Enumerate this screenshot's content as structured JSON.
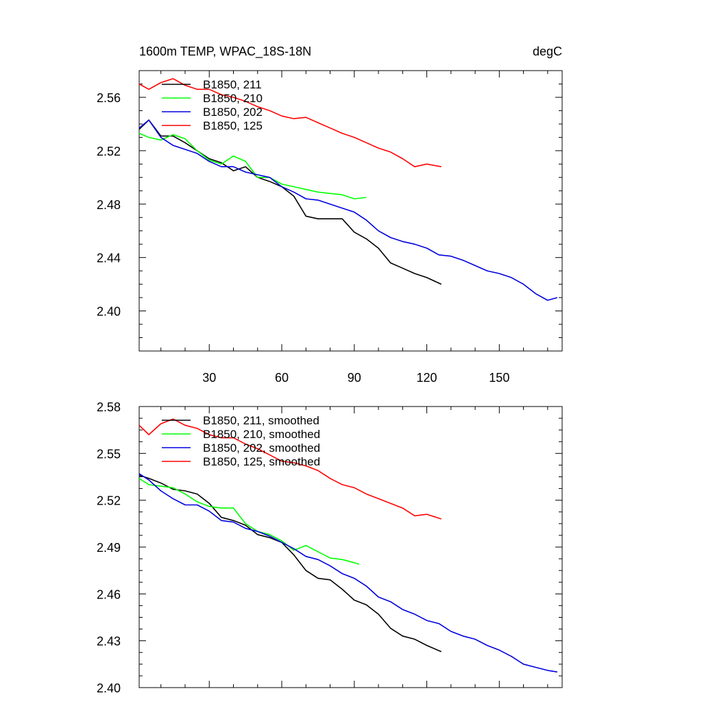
{
  "header": {
    "title": "1600m TEMP, WPAC_18S-18N",
    "units": "degC"
  },
  "colors": {
    "B1850_211": "#000000",
    "B1850_210": "#00ff00",
    "B1850_202": "#0000dd",
    "B1850_125": "#ff0000"
  },
  "chart_data": [
    {
      "type": "line",
      "title": "1600m TEMP, WPAC_18S-18N",
      "units": "degC",
      "xlim": [
        1,
        176
      ],
      "ylim": [
        2.37,
        2.58
      ],
      "xticks": [
        30,
        60,
        90,
        120,
        150
      ],
      "xtick_labels": [
        "30",
        "60",
        "90",
        "120",
        "150"
      ],
      "yticks": [
        2.4,
        2.44,
        2.48,
        2.52,
        2.56
      ],
      "ytick_labels": [
        "2.40",
        "2.44",
        "2.48",
        "2.52",
        "2.56"
      ],
      "legend_position": "top-left",
      "series": [
        {
          "name": "B1850, 211",
          "color": "#000000",
          "x": [
            1,
            5,
            10,
            15,
            20,
            25,
            30,
            35,
            40,
            45,
            50,
            55,
            60,
            65,
            70,
            75,
            80,
            85,
            90,
            95,
            100,
            105,
            110,
            115,
            120,
            126
          ],
          "y": [
            2.536,
            2.543,
            2.531,
            2.531,
            2.526,
            2.52,
            2.514,
            2.511,
            2.505,
            2.508,
            2.5,
            2.497,
            2.493,
            2.486,
            2.471,
            2.469,
            2.469,
            2.469,
            2.459,
            2.454,
            2.447,
            2.436,
            2.432,
            2.428,
            2.425,
            2.42
          ]
        },
        {
          "name": "B1850, 210",
          "color": "#00ff00",
          "x": [
            1,
            5,
            10,
            15,
            20,
            25,
            30,
            35,
            40,
            45,
            50,
            55,
            60,
            65,
            70,
            75,
            80,
            85,
            90,
            95
          ],
          "y": [
            2.533,
            2.53,
            2.528,
            2.532,
            2.529,
            2.52,
            2.513,
            2.51,
            2.516,
            2.512,
            2.5,
            2.5,
            2.495,
            2.493,
            2.491,
            2.489,
            2.488,
            2.487,
            2.484,
            2.485
          ]
        },
        {
          "name": "B1850, 202",
          "color": "#0000dd",
          "x": [
            1,
            5,
            10,
            15,
            20,
            25,
            30,
            35,
            40,
            45,
            50,
            55,
            60,
            65,
            70,
            75,
            80,
            85,
            90,
            95,
            100,
            105,
            110,
            115,
            120,
            125,
            130,
            135,
            140,
            145,
            150,
            155,
            160,
            165,
            170,
            174
          ],
          "y": [
            2.537,
            2.543,
            2.53,
            2.524,
            2.521,
            2.518,
            2.512,
            2.508,
            2.508,
            2.504,
            2.502,
            2.5,
            2.493,
            2.489,
            2.484,
            2.483,
            2.48,
            2.477,
            2.474,
            2.468,
            2.46,
            2.455,
            2.452,
            2.45,
            2.447,
            2.442,
            2.441,
            2.438,
            2.434,
            2.43,
            2.428,
            2.425,
            2.42,
            2.413,
            2.408,
            2.41
          ]
        },
        {
          "name": "B1850, 125",
          "color": "#ff0000",
          "x": [
            1,
            5,
            10,
            15,
            20,
            25,
            30,
            35,
            40,
            45,
            50,
            55,
            60,
            65,
            70,
            75,
            80,
            85,
            90,
            95,
            100,
            105,
            110,
            115,
            120,
            126
          ],
          "y": [
            2.57,
            2.566,
            2.571,
            2.574,
            2.569,
            2.566,
            2.566,
            2.562,
            2.56,
            2.557,
            2.553,
            2.55,
            2.546,
            2.544,
            2.545,
            2.541,
            2.537,
            2.533,
            2.53,
            2.526,
            2.522,
            2.519,
            2.514,
            2.508,
            2.51,
            2.508
          ]
        }
      ]
    },
    {
      "type": "line",
      "xlim": [
        1,
        176
      ],
      "ylim": [
        2.4,
        2.58
      ],
      "xticks": [
        30,
        60,
        90,
        120,
        150
      ],
      "yticks": [
        2.4,
        2.43,
        2.46,
        2.49,
        2.52,
        2.55,
        2.58
      ],
      "ytick_labels": [
        "2.40",
        "2.43",
        "2.46",
        "2.49",
        "2.52",
        "2.55",
        "2.58"
      ],
      "legend_position": "top-left",
      "series": [
        {
          "name": "B1850, 211, smoothed",
          "color": "#000000",
          "x": [
            1,
            5,
            10,
            15,
            20,
            25,
            30,
            35,
            40,
            45,
            50,
            55,
            60,
            65,
            70,
            75,
            80,
            85,
            90,
            95,
            100,
            105,
            110,
            115,
            120,
            126
          ],
          "y": [
            2.536,
            2.534,
            2.531,
            2.527,
            2.526,
            2.524,
            2.518,
            2.509,
            2.507,
            2.504,
            2.498,
            2.496,
            2.493,
            2.485,
            2.475,
            2.47,
            2.469,
            2.463,
            2.456,
            2.453,
            2.447,
            2.438,
            2.433,
            2.431,
            2.427,
            2.423
          ]
        },
        {
          "name": "B1850, 210, smoothed",
          "color": "#00ff00",
          "x": [
            1,
            5,
            10,
            15,
            20,
            25,
            30,
            35,
            40,
            45,
            50,
            55,
            60,
            65,
            70,
            75,
            80,
            85,
            90,
            92
          ],
          "y": [
            2.534,
            2.53,
            2.529,
            2.528,
            2.524,
            2.519,
            2.516,
            2.515,
            2.515,
            2.505,
            2.5,
            2.498,
            2.494,
            2.488,
            2.491,
            2.487,
            2.483,
            2.482,
            2.48,
            2.479
          ]
        },
        {
          "name": "B1850, 202, smoothed",
          "color": "#0000dd",
          "x": [
            1,
            5,
            10,
            15,
            20,
            25,
            30,
            35,
            40,
            45,
            50,
            55,
            60,
            65,
            70,
            75,
            80,
            85,
            90,
            95,
            100,
            105,
            110,
            115,
            120,
            125,
            130,
            135,
            140,
            145,
            150,
            155,
            160,
            165,
            170,
            174
          ],
          "y": [
            2.537,
            2.533,
            2.526,
            2.521,
            2.517,
            2.517,
            2.513,
            2.507,
            2.506,
            2.502,
            2.5,
            2.497,
            2.493,
            2.489,
            2.484,
            2.482,
            2.478,
            2.473,
            2.47,
            2.465,
            2.458,
            2.455,
            2.45,
            2.447,
            2.443,
            2.441,
            2.436,
            2.433,
            2.431,
            2.427,
            2.424,
            2.42,
            2.415,
            2.413,
            2.411,
            2.41
          ]
        },
        {
          "name": "B1850, 125, smoothed",
          "color": "#ff0000",
          "x": [
            1,
            5,
            10,
            15,
            20,
            25,
            30,
            35,
            40,
            45,
            50,
            55,
            60,
            65,
            70,
            75,
            80,
            85,
            90,
            95,
            100,
            105,
            110,
            115,
            120,
            126
          ],
          "y": [
            2.568,
            2.562,
            2.569,
            2.572,
            2.568,
            2.566,
            2.562,
            2.56,
            2.56,
            2.556,
            2.553,
            2.549,
            2.545,
            2.544,
            2.542,
            2.539,
            2.534,
            2.53,
            2.528,
            2.524,
            2.521,
            2.518,
            2.515,
            2.51,
            2.511,
            2.508
          ]
        }
      ]
    }
  ]
}
